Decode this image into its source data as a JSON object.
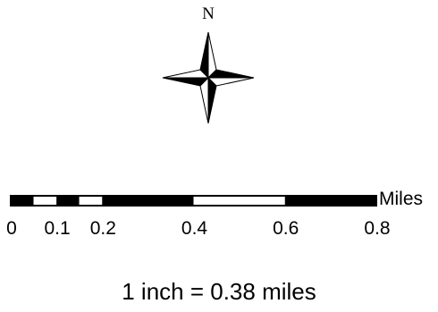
{
  "north_arrow": {
    "label": "N",
    "fill_color": "#000000",
    "outline_color": "#000000",
    "light_color": "#ffffff"
  },
  "scale_bar": {
    "units_label": "Miles",
    "min_value": 0,
    "max_value": 0.8,
    "segments": [
      {
        "from": 0,
        "to": 0.05,
        "fill": "black"
      },
      {
        "from": 0.05,
        "to": 0.1,
        "fill": "white"
      },
      {
        "from": 0.1,
        "to": 0.15,
        "fill": "black"
      },
      {
        "from": 0.15,
        "to": 0.2,
        "fill": "white"
      },
      {
        "from": 0.2,
        "to": 0.4,
        "fill": "black"
      },
      {
        "from": 0.4,
        "to": 0.6,
        "fill": "white"
      },
      {
        "from": 0.6,
        "to": 0.8,
        "fill": "black"
      }
    ],
    "ticks": [
      {
        "value": 0,
        "label": "0"
      },
      {
        "value": 0.1,
        "label": "0.1"
      },
      {
        "value": 0.2,
        "label": "0.2"
      },
      {
        "value": 0.4,
        "label": "0.4"
      },
      {
        "value": 0.6,
        "label": "0.6"
      },
      {
        "value": 0.8,
        "label": "0.8"
      }
    ]
  },
  "scale_text": "1 inch = 0.38 miles"
}
